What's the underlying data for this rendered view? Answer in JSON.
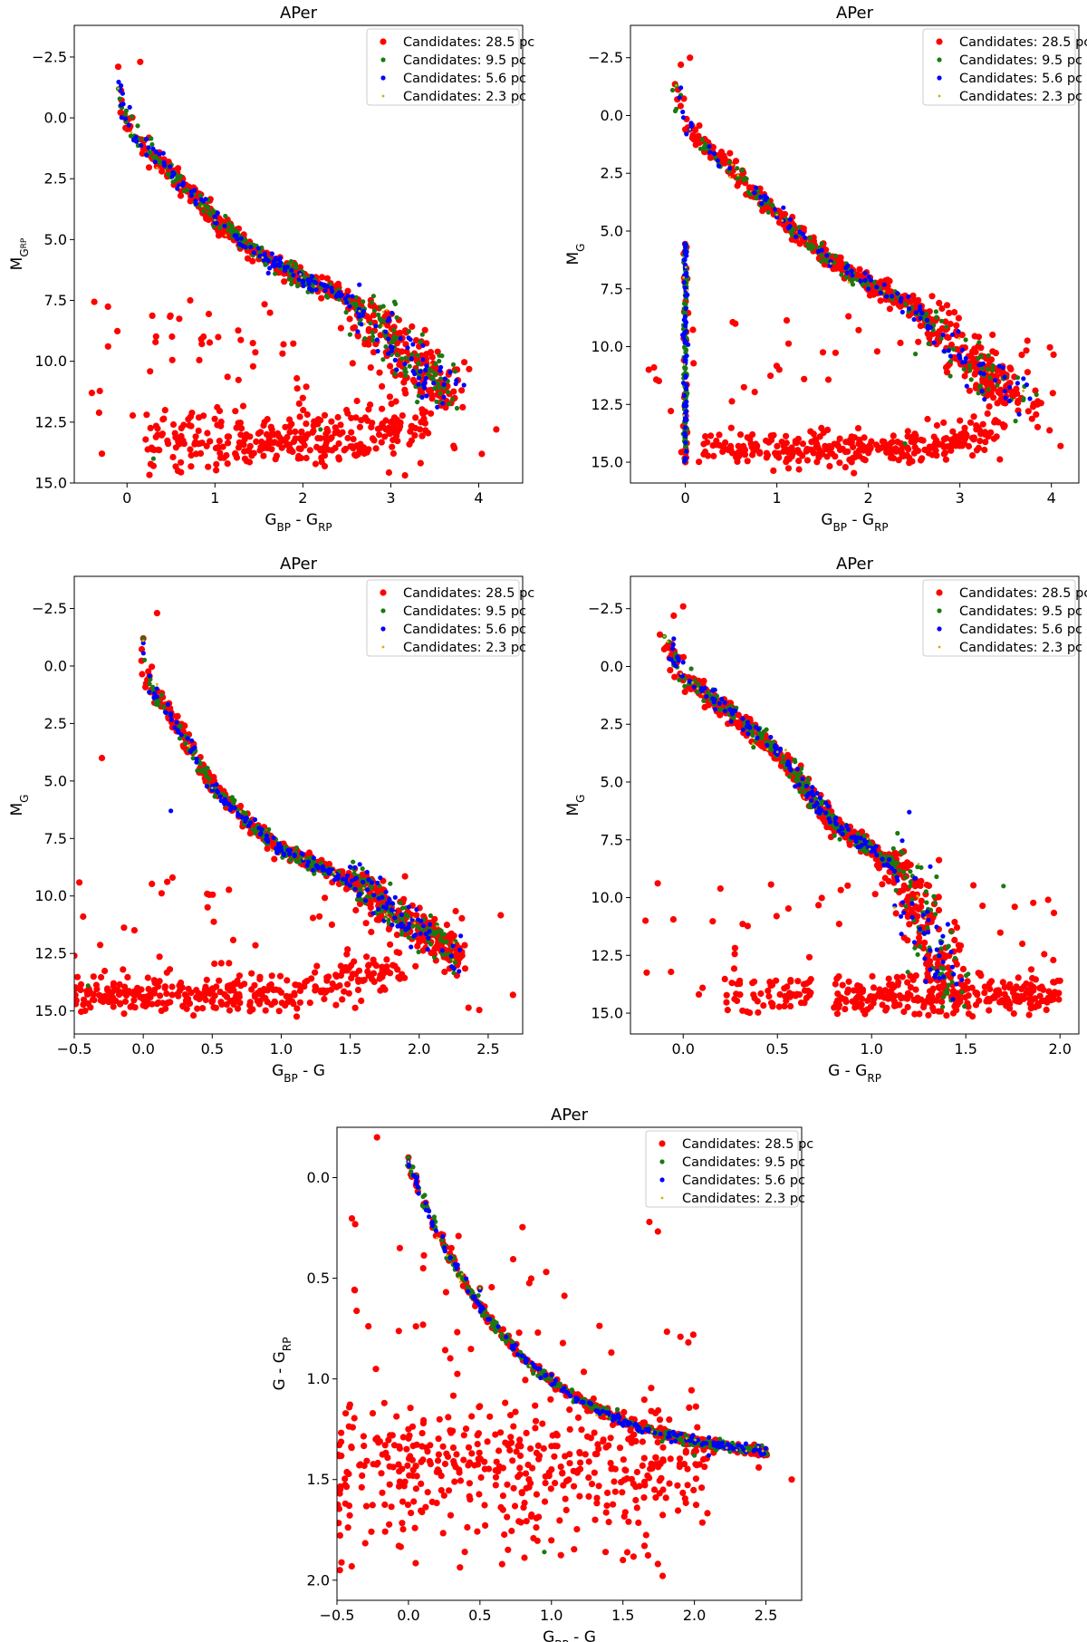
{
  "chart_data": [
    {
      "type": "scatter",
      "title": "APer",
      "xlabel": {
        "base": "G",
        "sub": "BP",
        "rest": " - G",
        "sub2": "RP"
      },
      "ylabel": {
        "base": "M",
        "sub": "G",
        "sub_sub": "RP"
      },
      "xlim": [
        -0.6,
        4.5
      ],
      "ylim": [
        15.0,
        -3.8
      ],
      "xticks": [
        0,
        1,
        2,
        3,
        4
      ],
      "xtick_labels": [
        "0",
        "1",
        "2",
        "3",
        "4"
      ],
      "yticks": [
        -2.5,
        0.0,
        2.5,
        5.0,
        7.5,
        10.0,
        12.5,
        15.0
      ],
      "ytick_labels": [
        "−2.5",
        "0.0",
        "2.5",
        "5.0",
        "7.5",
        "10.0",
        "12.5",
        "15.0"
      ],
      "legend_position": "top-right",
      "series": [
        {
          "name": "Candidates: 28.5 pc",
          "color": "#ff0000",
          "shape": "main_bp_rp",
          "count": 900,
          "ref": [
            [
              -0.1,
              -2.1
            ],
            [
              0.15,
              -2.3
            ],
            [
              0.0,
              0.1
            ],
            [
              0.1,
              0.8
            ],
            [
              0.5,
              2.2
            ],
            [
              1.0,
              4.2
            ],
            [
              1.5,
              5.8
            ],
            [
              2.0,
              6.6
            ],
            [
              2.5,
              7.5
            ],
            [
              3.0,
              9.0
            ],
            [
              3.3,
              10.0
            ],
            [
              3.6,
              10.9
            ],
            [
              4.2,
              12.8
            ],
            [
              -0.4,
              11.3
            ],
            [
              0.3,
              14.3
            ],
            [
              2.0,
              13.3
            ],
            [
              3.0,
              12.5
            ]
          ]
        },
        {
          "name": "Candidates: 9.5 pc",
          "color": "#1a7a10",
          "shape": "main_bp_rp",
          "count": 260,
          "ref": [
            [
              -0.1,
              -1.2
            ],
            [
              0.1,
              0.9
            ],
            [
              1.0,
              4.2
            ],
            [
              2.0,
              6.6
            ],
            [
              3.0,
              9.2
            ],
            [
              3.5,
              10.5
            ],
            [
              2.2,
              12.8
            ],
            [
              0.3,
              14.0
            ]
          ]
        },
        {
          "name": "Candidates: 5.6 pc",
          "color": "#0000ff",
          "shape": "main_bp_rp",
          "count": 170,
          "ref": [
            [
              -0.05,
              -1.0
            ],
            [
              0.1,
              0.8
            ],
            [
              1.0,
              4.3
            ],
            [
              2.0,
              6.7
            ],
            [
              3.0,
              9.4
            ],
            [
              3.4,
              10.7
            ]
          ]
        },
        {
          "name": "Candidates: 2.3 pc",
          "color": "#d4b000",
          "shape": "main_bp_rp",
          "count": 15,
          "ref": [
            [
              -0.1,
              -1.2
            ],
            [
              0.05,
              0.6
            ],
            [
              1.0,
              4.2
            ]
          ]
        }
      ]
    },
    {
      "type": "scatter",
      "title": "APer",
      "xlabel": {
        "base": "G",
        "sub": "BP",
        "rest": " - G",
        "sub2": "RP"
      },
      "ylabel": {
        "base": "M",
        "sub": "G",
        "sub_sub": ""
      },
      "xlim": [
        -0.6,
        4.3
      ],
      "ylim": [
        15.9,
        -3.9
      ],
      "xticks": [
        0,
        1,
        2,
        3,
        4
      ],
      "xtick_labels": [
        "0",
        "1",
        "2",
        "3",
        "4"
      ],
      "yticks": [
        -2.5,
        0.0,
        2.5,
        5.0,
        7.5,
        10.0,
        12.5,
        15.0
      ],
      "ytick_labels": [
        "−2.5",
        "0.0",
        "2.5",
        "5.0",
        "7.5",
        "10.0",
        "12.5",
        "15.0"
      ],
      "legend_position": "top-right",
      "series": [
        {
          "name": "Candidates: 28.5 pc",
          "color": "#ff0000",
          "shape": "main_bp_rp_mg",
          "count": 920,
          "ref": [
            [
              -0.05,
              -2.2
            ],
            [
              0.05,
              -2.5
            ],
            [
              0.0,
              0.6
            ],
            [
              0.5,
              2.2
            ],
            [
              1.0,
              4.3
            ],
            [
              1.5,
              6.2
            ],
            [
              2.0,
              7.5
            ],
            [
              2.5,
              8.4
            ],
            [
              3.0,
              10.2
            ],
            [
              3.4,
              11.3
            ],
            [
              3.8,
              12.6
            ],
            [
              4.1,
              14.3
            ],
            [
              -0.4,
              11.0
            ],
            [
              0.0,
              15.0
            ],
            [
              2.0,
              14.6
            ],
            [
              3.0,
              13.2
            ]
          ]
        },
        {
          "name": "Candidates: 9.5 pc",
          "color": "#1a7a10",
          "shape": "main_bp_rp_mg",
          "count": 260,
          "ref": [
            [
              -0.1,
              -1.3
            ],
            [
              0.0,
              5.6
            ],
            [
              0.0,
              9.2
            ],
            [
              1.0,
              4.4
            ],
            [
              2.0,
              7.4
            ],
            [
              3.0,
              10.4
            ],
            [
              3.5,
              11.3
            ],
            [
              2.4,
              14.2
            ]
          ]
        },
        {
          "name": "Candidates: 5.6 pc",
          "color": "#0000ff",
          "shape": "main_bp_rp_mg",
          "count": 170,
          "ref": [
            [
              -0.05,
              -1.2
            ],
            [
              0.05,
              0.6
            ],
            [
              1.0,
              4.4
            ],
            [
              2.0,
              7.5
            ],
            [
              3.0,
              10.5
            ]
          ]
        },
        {
          "name": "Candidates: 2.3 pc",
          "color": "#d4b000",
          "shape": "main_bp_rp_mg",
          "count": 15,
          "ref": [
            [
              -0.1,
              -1.3
            ],
            [
              0.05,
              0.6
            ],
            [
              1.0,
              4.3
            ]
          ]
        }
      ]
    },
    {
      "type": "scatter",
      "title": "APer",
      "xlabel": {
        "base": "G",
        "sub": "BP",
        "rest": " - G",
        "sub2": ""
      },
      "ylabel": {
        "base": "M",
        "sub": "G",
        "sub_sub": ""
      },
      "xlim": [
        -0.5,
        2.75
      ],
      "ylim": [
        16.0,
        -3.9
      ],
      "xticks": [
        -0.5,
        0.0,
        0.5,
        1.0,
        1.5,
        2.0,
        2.5
      ],
      "xtick_labels": [
        "−0.5",
        "0.0",
        "0.5",
        "1.0",
        "1.5",
        "2.0",
        "2.5"
      ],
      "yticks": [
        -2.5,
        0.0,
        2.5,
        5.0,
        7.5,
        10.0,
        12.5,
        15.0
      ],
      "ytick_labels": [
        "−2.5",
        "0.0",
        "2.5",
        "5.0",
        "7.5",
        "10.0",
        "12.5",
        "15.0"
      ],
      "legend_position": "top-right",
      "series": [
        {
          "name": "Candidates: 28.5 pc",
          "color": "#ff0000",
          "shape": "main_bp_g",
          "count": 900,
          "ref": [
            [
              0.0,
              -1.2
            ],
            [
              0.1,
              -2.3
            ],
            [
              0.03,
              0.6
            ],
            [
              0.3,
              2.6
            ],
            [
              0.5,
              5.3
            ],
            [
              1.0,
              8.0
            ],
            [
              1.5,
              9.3
            ],
            [
              1.8,
              10.5
            ],
            [
              2.0,
              11.5
            ],
            [
              2.3,
              12.5
            ],
            [
              2.68,
              14.3
            ],
            [
              -0.5,
              12.6
            ],
            [
              -0.3,
              4.0
            ],
            [
              0.0,
              14.5
            ],
            [
              1.0,
              14.2
            ],
            [
              2.0,
              12.0
            ]
          ]
        },
        {
          "name": "Candidates: 9.5 pc",
          "color": "#1a7a10",
          "shape": "main_bp_g",
          "count": 260,
          "ref": [
            [
              0.0,
              -1.2
            ],
            [
              0.5,
              5.3
            ],
            [
              1.0,
              8.0
            ],
            [
              1.6,
              9.6
            ],
            [
              1.9,
              10.8
            ],
            [
              2.2,
              12.0
            ],
            [
              -0.4,
              13.9
            ]
          ]
        },
        {
          "name": "Candidates: 5.6 pc",
          "color": "#0000ff",
          "shape": "main_bp_g",
          "count": 170,
          "ref": [
            [
              0.0,
              -1.0
            ],
            [
              0.5,
              5.4
            ],
            [
              1.0,
              8.0
            ],
            [
              1.8,
              10.6
            ],
            [
              0.2,
              6.3
            ]
          ]
        },
        {
          "name": "Candidates: 2.3 pc",
          "color": "#d4b000",
          "shape": "main_bp_g",
          "count": 15,
          "ref": [
            [
              0.0,
              -1.1
            ],
            [
              0.1,
              0.8
            ],
            [
              0.5,
              5.3
            ]
          ]
        }
      ]
    },
    {
      "type": "scatter",
      "title": "APer",
      "xlabel": {
        "base": "G - G",
        "sub": "RP",
        "rest": "",
        "sub2": ""
      },
      "ylabel": {
        "base": "M",
        "sub": "G",
        "sub_sub": ""
      },
      "xlim": [
        -0.28,
        2.1
      ],
      "ylim": [
        15.9,
        -3.9
      ],
      "xticks": [
        0.0,
        0.5,
        1.0,
        1.5,
        2.0
      ],
      "xtick_labels": [
        "0.0",
        "0.5",
        "1.0",
        "1.5",
        "2.0"
      ],
      "yticks": [
        -2.5,
        0.0,
        2.5,
        5.0,
        7.5,
        10.0,
        12.5,
        15.0
      ],
      "ytick_labels": [
        "−2.5",
        "0.0",
        "2.5",
        "5.0",
        "7.5",
        "10.0",
        "12.5",
        "15.0"
      ],
      "legend_position": "top-right",
      "series": [
        {
          "name": "Candidates: 28.5 pc",
          "color": "#ff0000",
          "shape": "main_g_rp",
          "count": 900,
          "ref": [
            [
              -0.05,
              -2.2
            ],
            [
              0.0,
              -2.6
            ],
            [
              0.0,
              0.6
            ],
            [
              0.2,
              1.7
            ],
            [
              0.5,
              3.7
            ],
            [
              0.8,
              6.8
            ],
            [
              1.1,
              8.5
            ],
            [
              1.25,
              10.5
            ],
            [
              1.3,
              12.5
            ],
            [
              1.4,
              14.0
            ],
            [
              2.0,
              13.6
            ],
            [
              -0.2,
              11.0
            ],
            [
              0.3,
              13.6
            ],
            [
              1.8,
              12.0
            ]
          ]
        },
        {
          "name": "Candidates: 9.5 pc",
          "color": "#1a7a10",
          "shape": "main_g_rp",
          "count": 260,
          "ref": [
            [
              -0.1,
              -1.3
            ],
            [
              0.5,
              3.7
            ],
            [
              1.0,
              8.0
            ],
            [
              1.3,
              10.5
            ],
            [
              1.7,
              9.5
            ],
            [
              1.4,
              14.0
            ]
          ]
        },
        {
          "name": "Candidates: 5.6 pc",
          "color": "#0000ff",
          "shape": "main_g_rp",
          "count": 170,
          "ref": [
            [
              -0.05,
              -1.2
            ],
            [
              0.5,
              3.8
            ],
            [
              1.0,
              8.0
            ],
            [
              1.3,
              11.5
            ],
            [
              1.2,
              6.3
            ]
          ]
        },
        {
          "name": "Candidates: 2.3 pc",
          "color": "#d4b000",
          "shape": "main_g_rp",
          "count": 15,
          "ref": [
            [
              -0.1,
              -1.3
            ],
            [
              0.05,
              0.7
            ],
            [
              0.5,
              3.7
            ]
          ]
        }
      ]
    },
    {
      "type": "scatter",
      "title": "APer",
      "xlabel": {
        "base": "G",
        "sub": "BP",
        "rest": " - G",
        "sub2": ""
      },
      "ylabel": {
        "base": "G - G",
        "sub": "RP",
        "sub_sub": ""
      },
      "xlim": [
        -0.5,
        2.75
      ],
      "ylim": [
        2.1,
        -0.25
      ],
      "xticks": [
        -0.5,
        0.0,
        0.5,
        1.0,
        1.5,
        2.0,
        2.5
      ],
      "xtick_labels": [
        "−0.5",
        "0.0",
        "0.5",
        "1.0",
        "1.5",
        "2.0",
        "2.5"
      ],
      "yticks": [
        0.0,
        0.5,
        1.0,
        1.5,
        2.0
      ],
      "ytick_labels": [
        "0.0",
        "0.5",
        "1.0",
        "1.5",
        "2.0"
      ],
      "legend_position": "top-right",
      "series": [
        {
          "name": "Candidates: 28.5 pc",
          "color": "#ff0000",
          "shape": "main_bp_g_g_rp",
          "count": 900,
          "ref": [
            [
              -0.22,
              -0.2
            ],
            [
              0.0,
              -0.1
            ],
            [
              0.3,
              0.35
            ],
            [
              0.5,
              0.55
            ],
            [
              1.0,
              0.98
            ],
            [
              1.5,
              1.22
            ],
            [
              2.0,
              1.36
            ],
            [
              2.45,
              1.44
            ],
            [
              2.68,
              1.5
            ],
            [
              -0.48,
              1.95
            ],
            [
              0.0,
              1.25
            ],
            [
              1.0,
              1.45
            ],
            [
              1.5,
              1.9
            ]
          ]
        },
        {
          "name": "Candidates: 9.5 pc",
          "color": "#1a7a10",
          "shape": "main_bp_g_g_rp",
          "count": 260,
          "ref": [
            [
              0.0,
              -0.1
            ],
            [
              0.5,
              0.55
            ],
            [
              1.0,
              0.98
            ],
            [
              1.5,
              1.22
            ],
            [
              2.0,
              1.38
            ],
            [
              0.95,
              1.86
            ]
          ]
        },
        {
          "name": "Candidates: 5.6 pc",
          "color": "#0000ff",
          "shape": "main_bp_g_g_rp",
          "count": 170,
          "ref": [
            [
              0.0,
              -0.08
            ],
            [
              0.5,
              0.56
            ],
            [
              1.0,
              0.98
            ],
            [
              1.6,
              1.24
            ],
            [
              2.1,
              1.38
            ]
          ]
        },
        {
          "name": "Candidates: 2.3 pc",
          "color": "#d4b000",
          "shape": "main_bp_g_g_rp",
          "count": 15,
          "ref": [
            [
              0.0,
              -0.08
            ],
            [
              0.2,
              0.3
            ],
            [
              0.5,
              0.55
            ]
          ]
        }
      ]
    }
  ]
}
